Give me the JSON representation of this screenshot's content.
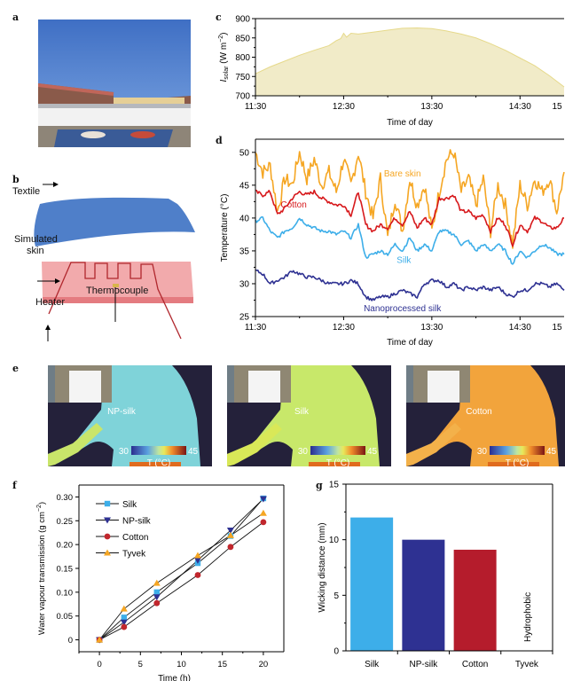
{
  "panels": {
    "a": {
      "label": "a"
    },
    "b": {
      "label": "b",
      "annotations": {
        "textile": "Textile",
        "skin": "Simulated skin",
        "skin_line1": "Simulated",
        "skin_line2": "skin",
        "heater": "Heater",
        "thermocouple": "Thermocouple"
      }
    },
    "c": {
      "label": "c"
    },
    "d": {
      "label": "d"
    },
    "e": {
      "label": "e",
      "images": [
        {
          "name": "NP-silk",
          "cbar_min": "30",
          "cbar_max": "45",
          "cbar_label": "T (°C)"
        },
        {
          "name": "Silk",
          "cbar_min": "30",
          "cbar_max": "45",
          "cbar_label": "T (°C)"
        },
        {
          "name": "Cotton",
          "cbar_min": "30",
          "cbar_max": "45",
          "cbar_label": "T (°C)"
        }
      ]
    },
    "f": {
      "label": "f"
    },
    "g": {
      "label": "g"
    }
  },
  "colors": {
    "silk": "#3daee9",
    "np_silk": "#2e3192",
    "cotton": "#d7191c",
    "cotton_bar": "#b51c2c",
    "tyvek": "#f5a623",
    "bare_skin": "#f5a623",
    "solar_fill": "#f1ebc8",
    "solar_line": "#e6d98a"
  },
  "chart_data": [
    {
      "id": "c",
      "type": "area",
      "title": "",
      "xlabel": "Time of day",
      "ylabel": "I_solar (W m^-2)",
      "ylabel_main": "I",
      "ylabel_sub": "solar",
      "ylabel_rest": " (W m",
      "ylabel_sup": "−2",
      "ylabel_end": ")",
      "xticks": [
        "11:30",
        "12:30",
        "13:30",
        "14:30",
        "15"
      ],
      "xlim_minutes": [
        0,
        210
      ],
      "ylim": [
        700,
        900
      ],
      "yticks": [
        700,
        750,
        800,
        850,
        900
      ],
      "x_minutes": [
        0,
        10,
        20,
        30,
        40,
        50,
        55,
        58,
        60,
        62,
        65,
        70,
        80,
        90,
        100,
        110,
        120,
        130,
        140,
        150,
        160,
        170,
        180,
        190,
        200,
        210
      ],
      "values": [
        757,
        775,
        790,
        805,
        818,
        830,
        843,
        848,
        862,
        852,
        862,
        860,
        865,
        870,
        875,
        876,
        874,
        868,
        860,
        850,
        835,
        818,
        798,
        778,
        752,
        723
      ]
    },
    {
      "id": "d",
      "type": "line",
      "xlabel": "Time of day",
      "ylabel": "Temperature (°C)",
      "xticks": [
        "11:30",
        "12:30",
        "13:30",
        "14:30",
        "15"
      ],
      "xlim_minutes": [
        0,
        210
      ],
      "ylim": [
        25,
        52
      ],
      "yticks": [
        25,
        30,
        35,
        40,
        45,
        50
      ],
      "series": [
        {
          "name": "Bare skin",
          "color": "#f5a623",
          "x_minutes": [
            0,
            5,
            10,
            15,
            20,
            25,
            30,
            35,
            40,
            45,
            50,
            55,
            60,
            65,
            70,
            75,
            80,
            85,
            90,
            95,
            100,
            105,
            110,
            115,
            120,
            125,
            130,
            135,
            140,
            145,
            150,
            155,
            160,
            165,
            170,
            175,
            180,
            185,
            190,
            195,
            200,
            205,
            210
          ],
          "values": [
            50,
            47,
            48,
            41,
            46,
            45,
            50,
            46,
            49,
            45,
            47,
            44,
            49,
            45,
            50,
            44,
            40,
            46,
            37,
            43,
            38,
            46,
            42,
            45,
            38,
            44,
            49,
            50,
            44,
            46,
            42,
            46,
            38,
            45,
            42,
            36,
            45,
            42,
            46,
            44,
            46,
            41,
            47
          ]
        },
        {
          "name": "Cotton",
          "color": "#d7191c",
          "x_minutes": [
            0,
            5,
            10,
            15,
            20,
            25,
            30,
            35,
            40,
            45,
            50,
            55,
            60,
            65,
            70,
            75,
            80,
            85,
            90,
            95,
            100,
            105,
            110,
            115,
            120,
            125,
            130,
            135,
            140,
            145,
            150,
            155,
            160,
            165,
            170,
            175,
            180,
            185,
            190,
            195,
            200,
            205,
            210
          ],
          "values": [
            44,
            43.5,
            44,
            40.5,
            41.5,
            43,
            44,
            43.5,
            44,
            43,
            42.5,
            42,
            42,
            40.5,
            44,
            39,
            38,
            39,
            38.5,
            40,
            39,
            41,
            38.5,
            40,
            39,
            43,
            43,
            43.5,
            41,
            41,
            40,
            40.5,
            38,
            40,
            39,
            36,
            39,
            38,
            40,
            39.5,
            38.5,
            38.5,
            40
          ]
        },
        {
          "name": "Silk",
          "color": "#3daee9",
          "x_minutes": [
            0,
            5,
            10,
            15,
            20,
            25,
            30,
            35,
            40,
            45,
            50,
            55,
            60,
            65,
            70,
            75,
            80,
            85,
            90,
            95,
            100,
            105,
            110,
            115,
            120,
            125,
            130,
            135,
            140,
            145,
            150,
            155,
            160,
            165,
            170,
            175,
            180,
            185,
            190,
            195,
            200,
            205,
            210
          ],
          "values": [
            39.5,
            40,
            38,
            37,
            38,
            38.5,
            40,
            39,
            38.5,
            38,
            38,
            37.5,
            38,
            37,
            39,
            34,
            34.5,
            35,
            34.5,
            36,
            35,
            37,
            35,
            36,
            35,
            38,
            38,
            37.5,
            36,
            36.5,
            35,
            36,
            35,
            36,
            35,
            33,
            35,
            34,
            35,
            36,
            35.5,
            34.5,
            34.5
          ]
        },
        {
          "name": "Nanoprocessed silk",
          "color": "#2e3192",
          "x_minutes": [
            0,
            5,
            10,
            15,
            20,
            25,
            30,
            35,
            40,
            45,
            50,
            55,
            60,
            65,
            70,
            75,
            80,
            85,
            90,
            95,
            100,
            105,
            110,
            115,
            120,
            125,
            130,
            135,
            140,
            145,
            150,
            155,
            160,
            165,
            170,
            175,
            180,
            185,
            190,
            195,
            200,
            205,
            210
          ],
          "values": [
            32,
            31.5,
            30,
            30.5,
            31,
            32,
            31.5,
            31,
            31,
            30.5,
            30,
            30,
            30,
            30.5,
            30,
            28,
            27.5,
            28,
            28,
            28.5,
            29,
            28.5,
            28,
            30,
            30.5,
            30.5,
            29.5,
            30,
            29,
            29.5,
            29,
            29.5,
            29,
            29.5,
            28.5,
            28,
            29,
            29,
            30,
            30,
            29.5,
            30,
            29
          ]
        }
      ],
      "annotations": {
        "bare_skin": "Bare skin",
        "cotton": "Cotton",
        "silk": "Silk",
        "np_silk": "Nanoprocessed silk"
      }
    },
    {
      "id": "f",
      "type": "line",
      "xlabel": "Time (h)",
      "ylabel": "Water vapour transmission (g cm^-2)",
      "ylabel_text": "Water vapour transmission (g cm",
      "ylabel_sup": "−2",
      "ylabel_end": ")",
      "xlim": [
        -2.5,
        22.5
      ],
      "xticks": [
        0,
        5,
        10,
        15,
        20
      ],
      "ylim": [
        -0.025,
        0.325
      ],
      "yticks": [
        "0",
        "0.05",
        "0.10",
        "0.15",
        "0.20",
        "0.25",
        "0.30"
      ],
      "ytick_values": [
        0,
        0.05,
        0.1,
        0.15,
        0.2,
        0.25,
        0.3
      ],
      "x": [
        0,
        3,
        7,
        12,
        16,
        20
      ],
      "series": [
        {
          "name": "Silk",
          "marker": "square",
          "color": "#3daee9",
          "values": [
            0,
            0.047,
            0.1,
            0.161,
            0.218,
            0.297
          ]
        },
        {
          "name": "NP-silk",
          "marker": "triangle-down",
          "color": "#2e3192",
          "values": [
            0,
            0.037,
            0.09,
            0.167,
            0.23,
            0.296
          ]
        },
        {
          "name": "Cotton",
          "marker": "circle",
          "color": "#c1272d",
          "values": [
            0,
            0.027,
            0.077,
            0.136,
            0.195,
            0.247
          ]
        },
        {
          "name": "Tyvek",
          "marker": "triangle-up",
          "color": "#f5a623",
          "values": [
            0,
            0.065,
            0.119,
            0.177,
            0.219,
            0.266
          ]
        }
      ],
      "legend_position": "top-left"
    },
    {
      "id": "g",
      "type": "bar",
      "xlabel": "",
      "ylabel": "Wicking distance (mm)",
      "categories": [
        "Silk",
        "NP-silk",
        "Cotton",
        "Tyvek"
      ],
      "values": [
        12,
        10,
        9.1,
        0
      ],
      "colors": [
        "#3daee9",
        "#2e3192",
        "#b51c2c",
        "none"
      ],
      "ylim": [
        0,
        15
      ],
      "yticks": [
        0,
        5,
        10,
        15
      ],
      "annotations": {
        "tyvek": "Hydrophobic"
      }
    }
  ]
}
